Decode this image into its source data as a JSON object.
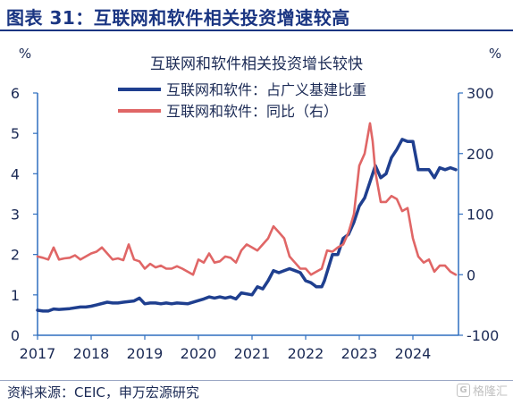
{
  "figure": {
    "title": "图表 31：互联网和软件相关投资增速较高",
    "source": "资料来源：CEIC，申万宏源研究",
    "watermark": "格隆汇"
  },
  "chart_data": {
    "type": "line",
    "title": "互联网和软件相关投资增长较快",
    "y_left_unit": "%",
    "y_right_unit": "%",
    "ylim_left": [
      0,
      6
    ],
    "ylim_right": [
      -100,
      300
    ],
    "yticks_left": [
      "0",
      "1",
      "2",
      "3",
      "4",
      "5",
      "6"
    ],
    "yticks_right": [
      "-100",
      "0",
      "100",
      "200",
      "300"
    ],
    "xlim": [
      2017,
      2024.85
    ],
    "xticks": [
      "2017",
      "2018",
      "2019",
      "2020",
      "2021",
      "2022",
      "2023",
      "2024"
    ],
    "legend_position": "top-center",
    "grid": false,
    "series": [
      {
        "name": "互联网和软件：占广义基建比重",
        "axis": "left",
        "color": "#1f3f8f",
        "x": [
          2017.0,
          2017.1,
          2017.2,
          2017.3,
          2017.4,
          2017.6,
          2017.8,
          2017.9,
          2018.0,
          2018.1,
          2018.3,
          2018.4,
          2018.5,
          2018.6,
          2018.8,
          2018.9,
          2019.0,
          2019.1,
          2019.2,
          2019.3,
          2019.4,
          2019.5,
          2019.6,
          2019.8,
          2020.0,
          2020.1,
          2020.2,
          2020.3,
          2020.4,
          2020.5,
          2020.6,
          2020.7,
          2020.8,
          2021.0,
          2021.1,
          2021.2,
          2021.3,
          2021.4,
          2021.5,
          2021.7,
          2021.8,
          2021.9,
          2022.0,
          2022.1,
          2022.15,
          2022.2,
          2022.3,
          2022.35,
          2022.5,
          2022.6,
          2022.7,
          2022.8,
          2022.9,
          2023.0,
          2023.1,
          2023.2,
          2023.3,
          2023.4,
          2023.5,
          2023.6,
          2023.7,
          2023.8,
          2023.9,
          2024.0,
          2024.1,
          2024.2,
          2024.3,
          2024.4,
          2024.5,
          2024.6,
          2024.7,
          2024.8
        ],
        "y": [
          0.62,
          0.6,
          0.6,
          0.65,
          0.64,
          0.66,
          0.7,
          0.7,
          0.72,
          0.75,
          0.82,
          0.8,
          0.8,
          0.82,
          0.85,
          0.92,
          0.78,
          0.8,
          0.8,
          0.78,
          0.8,
          0.78,
          0.8,
          0.78,
          0.86,
          0.9,
          0.95,
          0.92,
          0.95,
          0.92,
          0.95,
          0.9,
          1.05,
          1.0,
          1.2,
          1.15,
          1.35,
          1.6,
          1.55,
          1.65,
          1.6,
          1.55,
          1.35,
          1.3,
          1.25,
          1.2,
          1.2,
          1.35,
          2.0,
          2.0,
          2.4,
          2.5,
          2.8,
          3.2,
          3.4,
          3.8,
          4.2,
          3.9,
          4.0,
          4.4,
          4.6,
          4.85,
          4.8,
          4.8,
          4.1,
          4.1,
          4.1,
          3.9,
          4.15,
          4.1,
          4.15,
          4.1
        ]
      },
      {
        "name": "互联网和软件：同比（右）",
        "axis": "right",
        "color": "#e06666",
        "x": [
          2017.0,
          2017.1,
          2017.2,
          2017.3,
          2017.4,
          2017.5,
          2017.6,
          2017.7,
          2017.8,
          2017.9,
          2018.0,
          2018.1,
          2018.2,
          2018.3,
          2018.4,
          2018.5,
          2018.6,
          2018.7,
          2018.8,
          2018.9,
          2019.0,
          2019.1,
          2019.2,
          2019.3,
          2019.4,
          2019.5,
          2019.6,
          2019.7,
          2019.8,
          2019.9,
          2020.0,
          2020.1,
          2020.2,
          2020.3,
          2020.4,
          2020.5,
          2020.6,
          2020.7,
          2020.8,
          2020.9,
          2021.0,
          2021.1,
          2021.2,
          2021.3,
          2021.4,
          2021.5,
          2021.6,
          2021.7,
          2021.8,
          2021.9,
          2022.0,
          2022.1,
          2022.2,
          2022.3,
          2022.4,
          2022.5,
          2022.6,
          2022.7,
          2022.8,
          2022.9,
          2023.0,
          2023.1,
          2023.2,
          2023.25,
          2023.3,
          2023.4,
          2023.5,
          2023.6,
          2023.7,
          2023.8,
          2023.9,
          2024.0,
          2024.1,
          2024.2,
          2024.3,
          2024.4,
          2024.5,
          2024.6,
          2024.7,
          2024.8
        ],
        "y": [
          30,
          28,
          25,
          45,
          25,
          27,
          28,
          32,
          25,
          30,
          35,
          38,
          45,
          35,
          25,
          27,
          24,
          50,
          25,
          22,
          10,
          18,
          12,
          15,
          10,
          10,
          14,
          10,
          5,
          0,
          25,
          20,
          35,
          20,
          22,
          30,
          28,
          20,
          40,
          50,
          45,
          40,
          50,
          60,
          80,
          70,
          60,
          30,
          20,
          10,
          10,
          0,
          5,
          10,
          40,
          38,
          45,
          50,
          70,
          100,
          180,
          200,
          250,
          220,
          170,
          120,
          120,
          130,
          125,
          105,
          110,
          60,
          30,
          20,
          25,
          5,
          15,
          15,
          5,
          0
        ]
      }
    ]
  }
}
